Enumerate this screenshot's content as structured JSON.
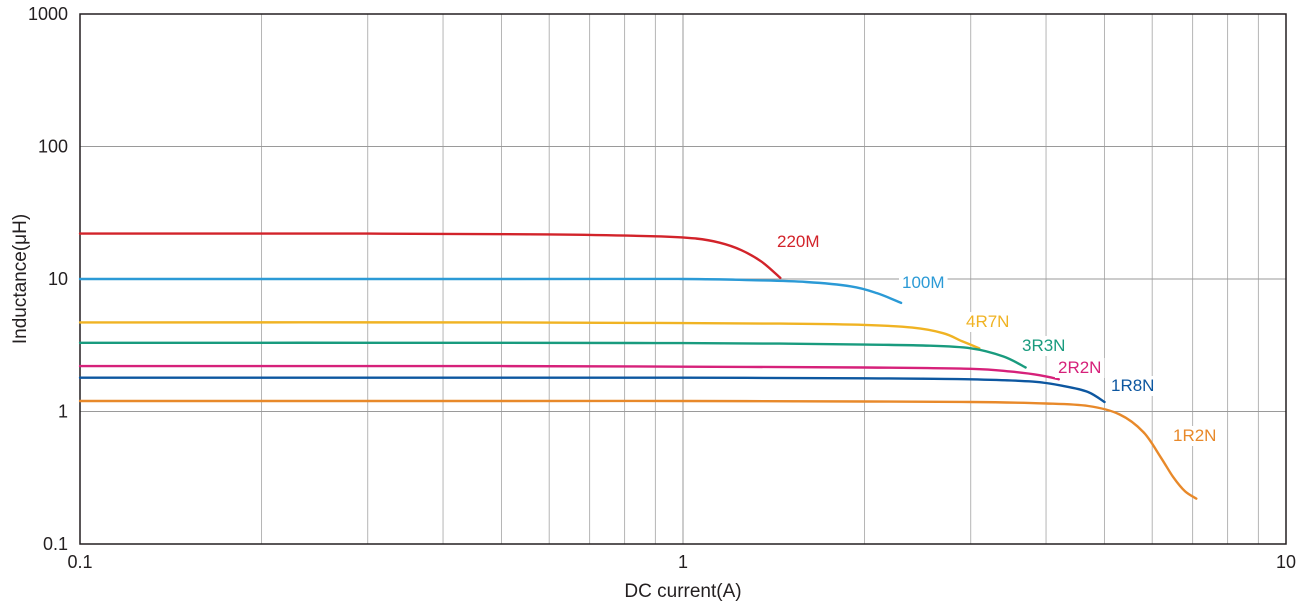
{
  "chart_data": {
    "type": "line",
    "xlabel": "DC current(A)",
    "ylabel": "Inductance(μH)",
    "xscale": "log",
    "yscale": "log",
    "xlim": [
      0.1,
      10
    ],
    "ylim": [
      0.1,
      1000
    ],
    "grid": true,
    "x_ticks": [
      "0.1",
      "1",
      "10"
    ],
    "y_ticks": [
      "0.1",
      "1",
      "10",
      "100",
      "1000"
    ],
    "series": [
      {
        "name": "220M",
        "color": "#d2232a",
        "x": [
          0.1,
          0.3,
          0.6,
          0.9,
          1.05,
          1.15,
          1.25,
          1.35,
          1.45
        ],
        "y": [
          22,
          22,
          21.7,
          21,
          20.2,
          18.8,
          16.5,
          13.5,
          10.2
        ]
      },
      {
        "name": "100M",
        "color": "#2b9ad6",
        "x": [
          0.1,
          0.5,
          1.0,
          1.3,
          1.6,
          1.9,
          2.1,
          2.3
        ],
        "y": [
          10,
          10,
          10,
          9.8,
          9.5,
          8.8,
          7.8,
          6.6
        ]
      },
      {
        "name": "4R7N",
        "color": "#f0b323",
        "x": [
          0.1,
          0.5,
          1.0,
          1.5,
          2.0,
          2.4,
          2.7,
          2.9,
          3.1
        ],
        "y": [
          4.7,
          4.7,
          4.65,
          4.6,
          4.5,
          4.3,
          3.9,
          3.4,
          3.0
        ]
      },
      {
        "name": "3R3N",
        "color": "#199b7e",
        "x": [
          0.1,
          0.5,
          1.0,
          1.5,
          2.0,
          2.5,
          3.0,
          3.4,
          3.7
        ],
        "y": [
          3.3,
          3.3,
          3.28,
          3.25,
          3.2,
          3.15,
          3.0,
          2.6,
          2.15
        ]
      },
      {
        "name": "2R2N",
        "color": "#d6217a",
        "x": [
          0.1,
          0.5,
          1.0,
          2.0,
          3.0,
          3.5,
          3.9,
          4.2
        ],
        "y": [
          2.2,
          2.2,
          2.18,
          2.15,
          2.1,
          2.0,
          1.88,
          1.75
        ]
      },
      {
        "name": "1R8N",
        "color": "#0d57a0",
        "x": [
          0.1,
          0.5,
          1.0,
          2.0,
          3.0,
          3.8,
          4.3,
          4.7,
          5.0
        ],
        "y": [
          1.8,
          1.8,
          1.8,
          1.78,
          1.75,
          1.68,
          1.55,
          1.4,
          1.18
        ]
      },
      {
        "name": "1R2N",
        "color": "#e8892a",
        "x": [
          0.1,
          0.5,
          1.0,
          2.0,
          3.0,
          4.0,
          4.7,
          5.3,
          5.8,
          6.2,
          6.5,
          6.8,
          7.1
        ],
        "y": [
          1.2,
          1.2,
          1.2,
          1.19,
          1.18,
          1.15,
          1.1,
          0.95,
          0.7,
          0.45,
          0.32,
          0.25,
          0.22
        ]
      }
    ]
  }
}
